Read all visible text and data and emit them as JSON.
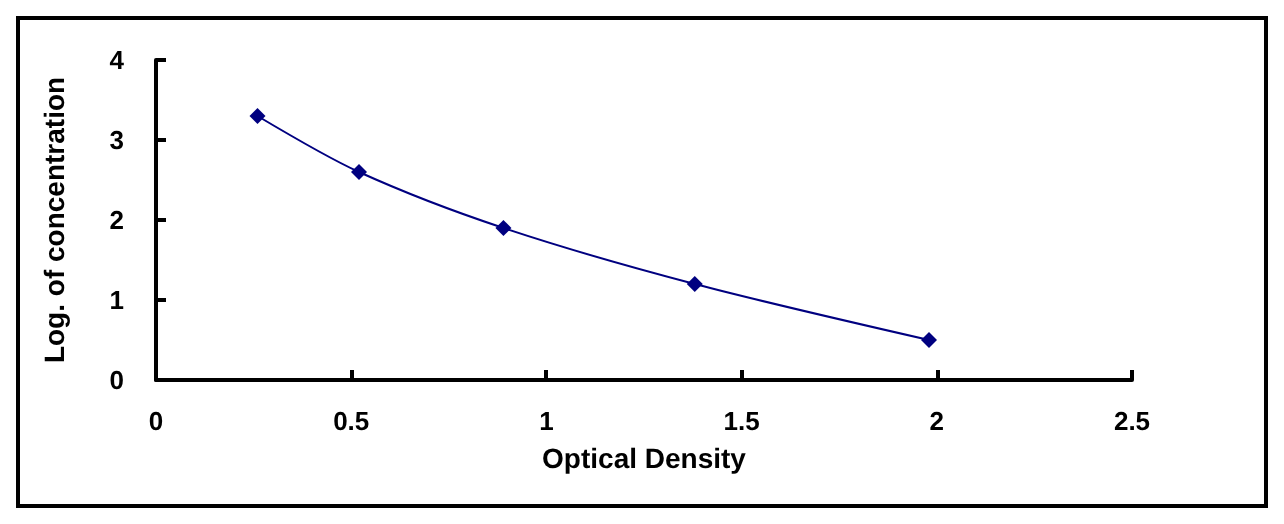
{
  "chart_data": {
    "type": "line",
    "xlabel": "Optical Density",
    "ylabel": "Log. of concentration",
    "x": [
      0.26,
      0.52,
      0.89,
      1.38,
      1.98
    ],
    "series": [
      {
        "color": "#000080",
        "values": [
          3.3,
          2.6,
          1.9,
          1.2,
          0.5
        ]
      }
    ],
    "xlim": [
      0,
      2.5
    ],
    "xticks": [
      0,
      0.5,
      1,
      1.5,
      2,
      2.5
    ],
    "ylim": [
      0,
      4
    ],
    "yticks": [
      0,
      1,
      2,
      3,
      4
    ],
    "grid": false,
    "marker": "diamond",
    "line_style": "solid"
  }
}
